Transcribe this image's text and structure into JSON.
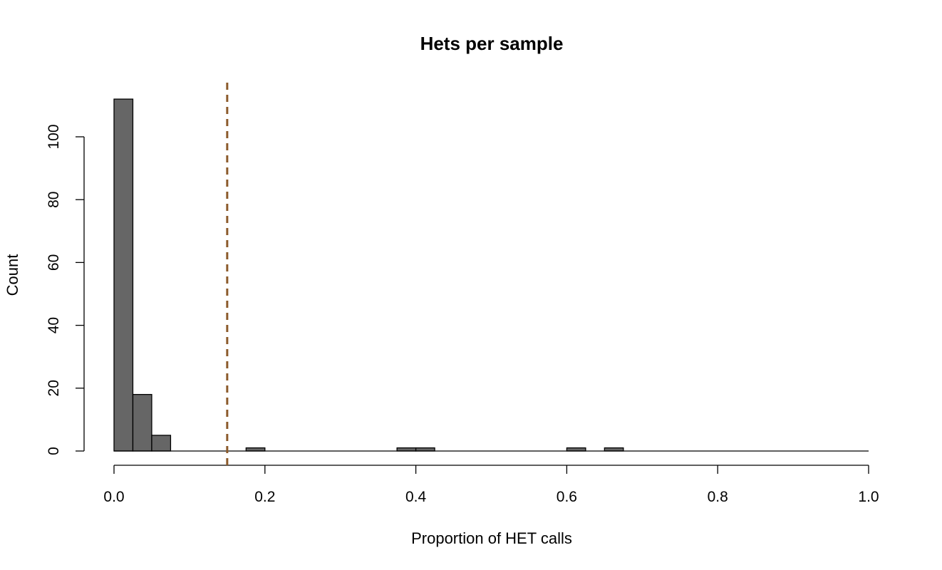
{
  "chart_data": {
    "type": "bar",
    "title": "Hets per sample",
    "xlabel": "Proportion of HET calls",
    "ylabel": "Count",
    "xlim": [
      0,
      1
    ],
    "ylim": [
      0,
      115
    ],
    "x_ticks": [
      "0.0",
      "0.2",
      "0.4",
      "0.6",
      "0.8",
      "1.0"
    ],
    "x_tick_values": [
      0,
      0.2,
      0.4,
      0.6,
      0.8,
      1.0
    ],
    "y_ticks": [
      "0",
      "20",
      "40",
      "60",
      "80",
      "100"
    ],
    "y_tick_values": [
      0,
      20,
      40,
      60,
      80,
      100
    ],
    "bin_width": 0.025,
    "bin_start": 0,
    "values": [
      112,
      18,
      5,
      0,
      0,
      0,
      0,
      1,
      0,
      0,
      0,
      0,
      0,
      0,
      0,
      1,
      1,
      0,
      0,
      0,
      0,
      0,
      0,
      0,
      1,
      0,
      1,
      0,
      0,
      0,
      0,
      0,
      0,
      0,
      0,
      0,
      0,
      0,
      0,
      0
    ],
    "threshold": 0.15,
    "bar_color": "#666666",
    "threshold_color": "#8B5A2B",
    "threshold_style": "dashed",
    "grid": false
  }
}
